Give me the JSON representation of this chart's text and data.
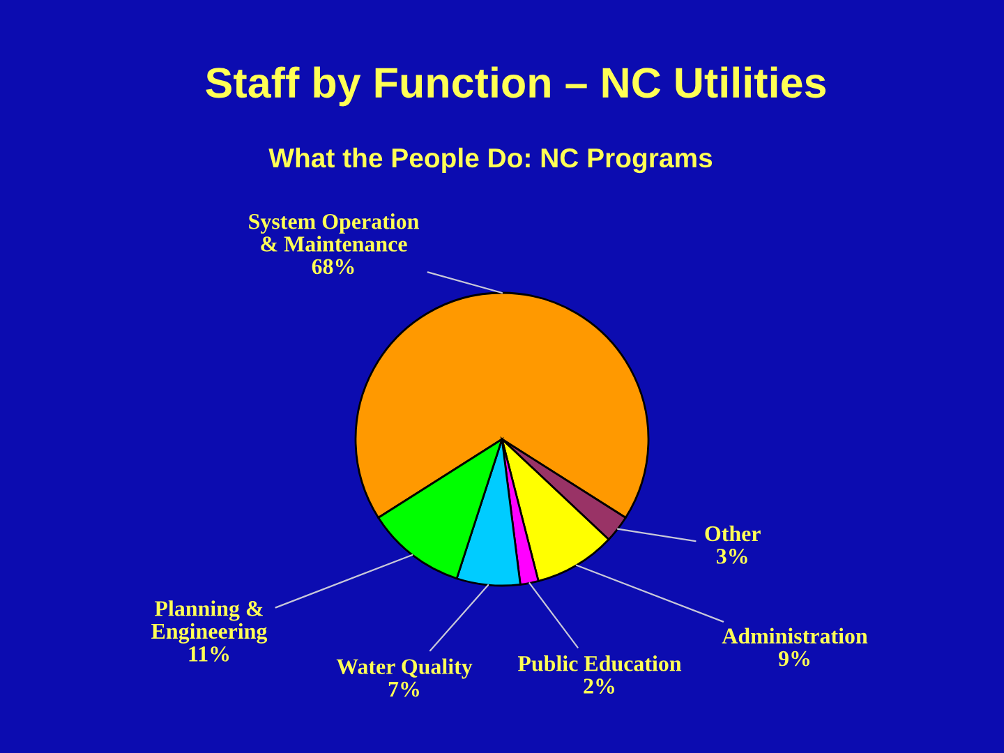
{
  "chart_data": {
    "type": "pie",
    "title": "Staff by Function – NC Utilities",
    "subtitle": "What the People Do: NC Programs",
    "categories": [
      "System Operation\n& Maintenance",
      "Other",
      "Administration",
      "Public Education",
      "Water Quality",
      "Planning &\nEngineering"
    ],
    "values": [
      68,
      3,
      9,
      2,
      7,
      11
    ],
    "colors": [
      "#ff9900",
      "#993366",
      "#ffff00",
      "#ff00ff",
      "#00ccff",
      "#00ff00"
    ],
    "value_labels": [
      "68%",
      "3%",
      "9%",
      "2%",
      "7%",
      "11%"
    ]
  }
}
